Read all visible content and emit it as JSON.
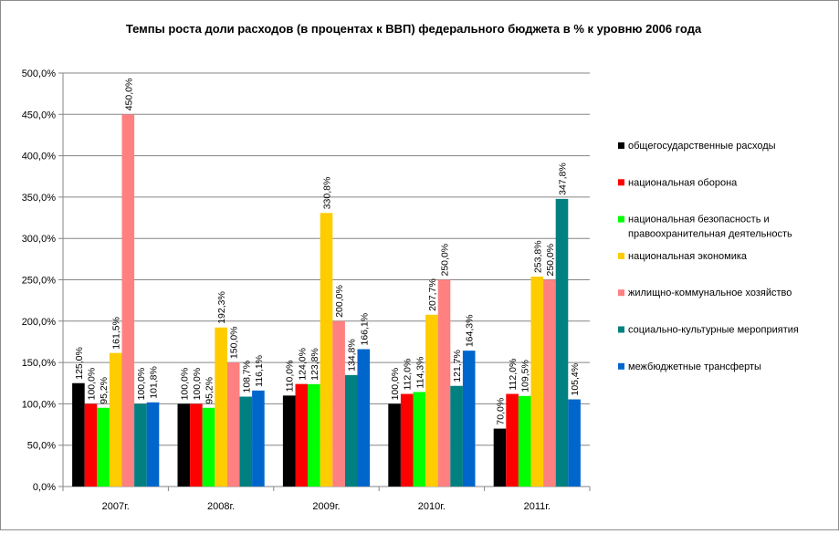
{
  "chart_data": {
    "type": "bar",
    "title": "Темпы роста доли расходов (в процентах к ВВП) федерального бюджета в % к уровню 2006 года",
    "categories": [
      "2007г.",
      "2008г.",
      "2009г.",
      "2010г.",
      "2011г."
    ],
    "ylim": [
      0,
      500
    ],
    "yticks": [
      0,
      50,
      100,
      150,
      200,
      250,
      300,
      350,
      400,
      450,
      500
    ],
    "ytick_labels": [
      "0,0%",
      "50,0%",
      "100,0%",
      "150,0%",
      "200,0%",
      "250,0%",
      "300,0%",
      "350,0%",
      "400,0%",
      "450,0%",
      "500,0%"
    ],
    "grid": true,
    "legend_position": "right",
    "series": [
      {
        "name": "общегосударственные расходы",
        "color": "#000000",
        "values": [
          125.0,
          100.0,
          110.0,
          100.0,
          70.0
        ],
        "labels": [
          "125,0%",
          "100,0%",
          "110,0%",
          "100,0%",
          "70,0%"
        ]
      },
      {
        "name": "национальная оборона",
        "color": "#ff0000",
        "values": [
          100.0,
          100.0,
          124.0,
          112.0,
          112.0
        ],
        "labels": [
          "100,0%",
          "100,0%",
          "124,0%",
          "112,0%",
          "112,0%"
        ]
      },
      {
        "name": "национальная безопасность и правоохранительная деятельность",
        "color": "#00ff00",
        "values": [
          95.2,
          95.2,
          123.8,
          114.3,
          109.5
        ],
        "labels": [
          "95,2%",
          "95,2%",
          "123,8%",
          "114,3%",
          "109,5%"
        ]
      },
      {
        "name": "национальная экономика",
        "color": "#ffcc00",
        "values": [
          161.5,
          192.3,
          330.8,
          207.7,
          253.8
        ],
        "labels": [
          "161,5%",
          "192,3%",
          "330,8%",
          "207,7%",
          "253,8%"
        ]
      },
      {
        "name": "жилищно-коммунальное хозяйство",
        "color": "#ff8080",
        "values": [
          450.0,
          150.0,
          200.0,
          250.0,
          250.0
        ],
        "labels": [
          "450,0%",
          "150,0%",
          "200,0%",
          "250,0%",
          "250,0%"
        ]
      },
      {
        "name": "социально-культурные мероприятия",
        "color": "#008080",
        "values": [
          100.0,
          108.7,
          134.8,
          121.7,
          347.8
        ],
        "labels": [
          "100,0%",
          "108,7%",
          "134,8%",
          "121,7%",
          "347,8%"
        ]
      },
      {
        "name": "межбюджетные трансферты",
        "color": "#0066cc",
        "values": [
          101.8,
          116.1,
          166.1,
          164.3,
          105.4
        ],
        "labels": [
          "101,8%",
          "116,1%",
          "166,1%",
          "164,3%",
          "105,4%"
        ]
      }
    ]
  }
}
